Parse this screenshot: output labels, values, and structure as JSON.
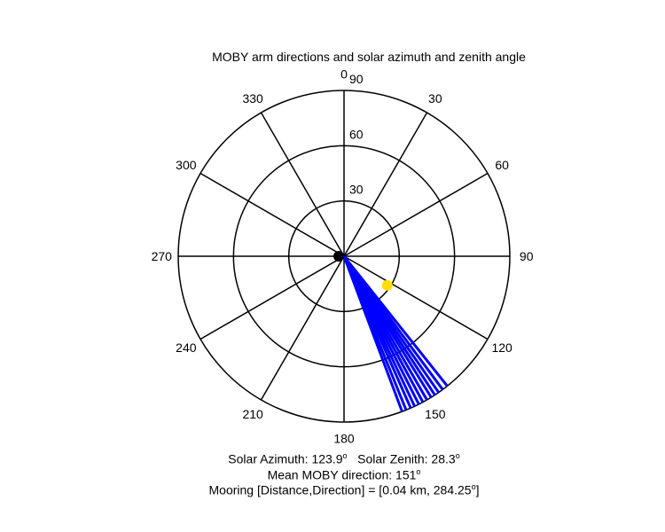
{
  "chart_data": {
    "type": "polar",
    "title": "MOBY arm directions and solar azimuth and zenith angle",
    "angle_ticks": [
      {
        "deg": 0,
        "label": "0"
      },
      {
        "deg": 30,
        "label": "30"
      },
      {
        "deg": 60,
        "label": "60"
      },
      {
        "deg": 90,
        "label": "90"
      },
      {
        "deg": 120,
        "label": "120"
      },
      {
        "deg": 150,
        "label": "150"
      },
      {
        "deg": 180,
        "label": "180"
      },
      {
        "deg": 210,
        "label": "210"
      },
      {
        "deg": 240,
        "label": "240"
      },
      {
        "deg": 270,
        "label": "270"
      },
      {
        "deg": 300,
        "label": "300"
      },
      {
        "deg": 330,
        "label": "330"
      }
    ],
    "radial_ticks": [
      {
        "value": 30,
        "label": "30"
      },
      {
        "value": 60,
        "label": "60"
      },
      {
        "value": 90,
        "label": "90"
      }
    ],
    "r_max": 90,
    "zero_direction": "north",
    "angle_direction": "clockwise",
    "moby_arm_directions_deg": [
      141.5,
      143.5,
      145.2,
      146.8,
      148.3,
      150.0,
      151.6,
      153.2,
      154.8,
      156.3,
      158.0,
      159.5
    ],
    "moby_arm_length": 90,
    "moby_color": "#0000ff",
    "solar_azimuth_deg": 123.9,
    "solar_zenith_deg": 28.3,
    "sun_color": "#ffdd00",
    "origin_marker_color": "#000000",
    "grid_color": "#000000"
  },
  "info": {
    "solar_azimuth_label": "Solar Azimuth: 123.9",
    "solar_zenith_label": "Solar Zenith: 28.3",
    "degree_symbol": "o",
    "mean_moby_label": "Mean MOBY direction: 151",
    "mooring_label": "Mooring [Distance,Direction] = [0.04 km, 284.25",
    "mooring_degree": "o",
    "mooring_close": "]"
  }
}
